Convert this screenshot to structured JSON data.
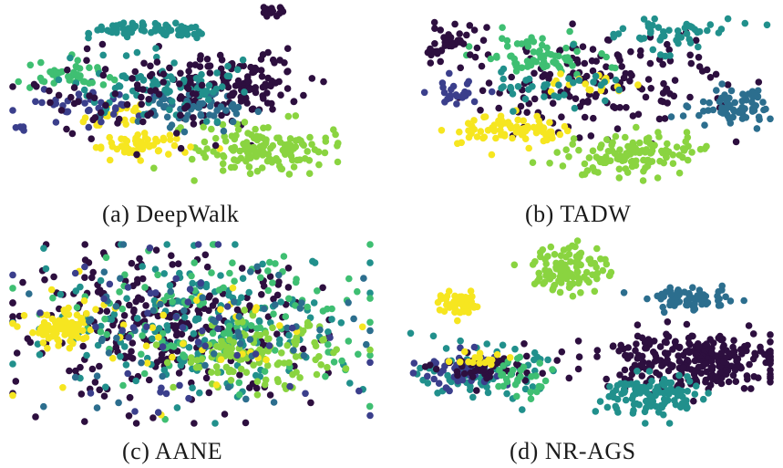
{
  "figure": {
    "captions": [
      "(a) DeepWalk",
      "(b) TADW",
      "(c) AANE",
      "(d) NR-AGS"
    ]
  },
  "chart_data": [
    {
      "type": "scatter",
      "title": "(a) DeepWalk",
      "grid": false,
      "axes": "hidden",
      "palette": [
        "#2d0f3f",
        "#3b3f8c",
        "#2c6e8e",
        "#21908c",
        "#3fbf72",
        "#8ad440",
        "#f6e620"
      ],
      "clusters": [
        {
          "color": "#21908c",
          "cx": 0.37,
          "cy": 0.88,
          "sx": 0.1,
          "sy": 0.05,
          "n": 70,
          "shape": "arc"
        },
        {
          "color": "#2d0f3f",
          "cx": 0.62,
          "cy": 0.55,
          "sx": 0.1,
          "sy": 0.1,
          "n": 140
        },
        {
          "color": "#8ad440",
          "cx": 0.7,
          "cy": 0.18,
          "sx": 0.09,
          "sy": 0.07,
          "n": 150
        },
        {
          "color": "#f6e620",
          "cx": 0.35,
          "cy": 0.2,
          "sx": 0.07,
          "sy": 0.04,
          "n": 60
        },
        {
          "color": "#f6e620",
          "cx": 0.28,
          "cy": 0.38,
          "sx": 0.05,
          "sy": 0.04,
          "n": 30
        },
        {
          "color": "#3b3f8c",
          "cx": 0.2,
          "cy": 0.45,
          "sx": 0.08,
          "sy": 0.05,
          "n": 40
        },
        {
          "color": "#2c6e8e",
          "cx": 0.52,
          "cy": 0.42,
          "sx": 0.07,
          "sy": 0.06,
          "n": 60
        },
        {
          "color": "#3fbf72",
          "cx": 0.15,
          "cy": 0.6,
          "sx": 0.06,
          "sy": 0.04,
          "n": 40
        },
        {
          "color": "#21908c",
          "cx": 0.4,
          "cy": 0.55,
          "sx": 0.15,
          "sy": 0.1,
          "n": 80
        },
        {
          "color": "#2d0f3f",
          "cx": 0.35,
          "cy": 0.5,
          "sx": 0.15,
          "sy": 0.12,
          "n": 70
        },
        {
          "color": "#2d0f3f",
          "cx": 0.73,
          "cy": 0.97,
          "sx": 0.02,
          "sy": 0.02,
          "n": 15
        },
        {
          "color": "#3b3f8c",
          "cx": 0.02,
          "cy": 0.3,
          "sx": 0.01,
          "sy": 0.01,
          "n": 5
        }
      ]
    },
    {
      "type": "scatter",
      "title": "(b) TADW",
      "grid": false,
      "axes": "hidden",
      "palette": [
        "#2d0f3f",
        "#3b3f8c",
        "#2c6e8e",
        "#21908c",
        "#3fbf72",
        "#8ad440",
        "#f6e620"
      ],
      "clusters": [
        {
          "color": "#2d0f3f",
          "cx": 0.5,
          "cy": 0.55,
          "sx": 0.2,
          "sy": 0.15,
          "n": 170
        },
        {
          "color": "#8ad440",
          "cx": 0.62,
          "cy": 0.15,
          "sx": 0.09,
          "sy": 0.06,
          "n": 130
        },
        {
          "color": "#f6e620",
          "cx": 0.28,
          "cy": 0.3,
          "sx": 0.07,
          "sy": 0.04,
          "n": 80
        },
        {
          "color": "#2c6e8e",
          "cx": 0.9,
          "cy": 0.42,
          "sx": 0.06,
          "sy": 0.05,
          "n": 70
        },
        {
          "color": "#3fbf72",
          "cx": 0.35,
          "cy": 0.72,
          "sx": 0.08,
          "sy": 0.06,
          "n": 70
        },
        {
          "color": "#21908c",
          "cx": 0.7,
          "cy": 0.85,
          "sx": 0.1,
          "sy": 0.05,
          "n": 50
        },
        {
          "color": "#3b3f8c",
          "cx": 0.12,
          "cy": 0.5,
          "sx": 0.04,
          "sy": 0.04,
          "n": 25
        },
        {
          "color": "#2d0f3f",
          "cx": 0.1,
          "cy": 0.8,
          "sx": 0.04,
          "sy": 0.05,
          "n": 40
        },
        {
          "color": "#f6e620",
          "cx": 0.5,
          "cy": 0.55,
          "sx": 0.05,
          "sy": 0.03,
          "n": 20
        },
        {
          "color": "#21908c",
          "cx": 0.4,
          "cy": 0.55,
          "sx": 0.1,
          "sy": 0.05,
          "n": 35
        }
      ]
    },
    {
      "type": "scatter",
      "title": "(c) AANE",
      "grid": false,
      "axes": "hidden",
      "palette": [
        "#2d0f3f",
        "#3b3f8c",
        "#2c6e8e",
        "#21908c",
        "#3fbf72",
        "#8ad440",
        "#f6e620"
      ],
      "clusters": [
        {
          "color": "#2d0f3f",
          "cx": 0.42,
          "cy": 0.52,
          "sx": 0.22,
          "sy": 0.2,
          "n": 280
        },
        {
          "color": "#21908c",
          "cx": 0.55,
          "cy": 0.55,
          "sx": 0.22,
          "sy": 0.2,
          "n": 180
        },
        {
          "color": "#3fbf72",
          "cx": 0.6,
          "cy": 0.58,
          "sx": 0.22,
          "sy": 0.2,
          "n": 130
        },
        {
          "color": "#8ad440",
          "cx": 0.68,
          "cy": 0.38,
          "sx": 0.11,
          "sy": 0.09,
          "n": 130
        },
        {
          "color": "#f6e620",
          "cx": 0.14,
          "cy": 0.52,
          "sx": 0.05,
          "sy": 0.05,
          "n": 80
        },
        {
          "color": "#f6e620",
          "cx": 0.45,
          "cy": 0.5,
          "sx": 0.25,
          "sy": 0.2,
          "n": 40
        },
        {
          "color": "#2c6e8e",
          "cx": 0.5,
          "cy": 0.5,
          "sx": 0.25,
          "sy": 0.22,
          "n": 60
        },
        {
          "color": "#3b3f8c",
          "cx": 0.5,
          "cy": 0.5,
          "sx": 0.25,
          "sy": 0.22,
          "n": 50
        }
      ]
    },
    {
      "type": "scatter",
      "title": "(d) NR-AGS",
      "grid": false,
      "axes": "hidden",
      "palette": [
        "#2d0f3f",
        "#3b3f8c",
        "#2c6e8e",
        "#21908c",
        "#3fbf72",
        "#8ad440",
        "#f6e620"
      ],
      "clusters": [
        {
          "color": "#8ad440",
          "cx": 0.45,
          "cy": 0.85,
          "sx": 0.05,
          "sy": 0.07,
          "n": 110
        },
        {
          "color": "#2c6e8e",
          "cx": 0.78,
          "cy": 0.68,
          "sx": 0.06,
          "sy": 0.03,
          "n": 70
        },
        {
          "color": "#f6e620",
          "cx": 0.15,
          "cy": 0.65,
          "sx": 0.03,
          "sy": 0.03,
          "n": 60
        },
        {
          "color": "#2d0f3f",
          "cx": 0.78,
          "cy": 0.35,
          "sx": 0.13,
          "sy": 0.08,
          "n": 280
        },
        {
          "color": "#21908c",
          "cx": 0.68,
          "cy": 0.15,
          "sx": 0.07,
          "sy": 0.06,
          "n": 110
        },
        {
          "color": "#21908c",
          "cx": 0.2,
          "cy": 0.27,
          "sx": 0.08,
          "sy": 0.07,
          "n": 80
        },
        {
          "color": "#3b3f8c",
          "cx": 0.16,
          "cy": 0.3,
          "sx": 0.06,
          "sy": 0.05,
          "n": 50
        },
        {
          "color": "#2d0f3f",
          "cx": 0.22,
          "cy": 0.3,
          "sx": 0.07,
          "sy": 0.05,
          "n": 50
        },
        {
          "color": "#3fbf72",
          "cx": 0.3,
          "cy": 0.25,
          "sx": 0.05,
          "sy": 0.05,
          "n": 30
        },
        {
          "color": "#f6e620",
          "cx": 0.2,
          "cy": 0.35,
          "sx": 0.05,
          "sy": 0.03,
          "n": 15
        }
      ]
    }
  ]
}
